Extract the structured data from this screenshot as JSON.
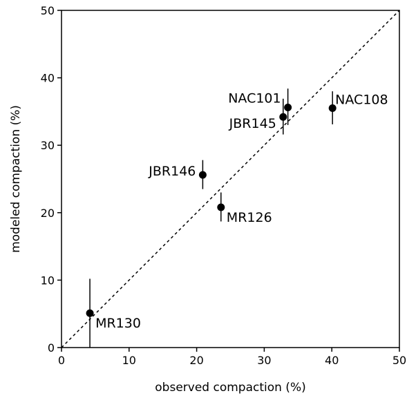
{
  "chart_data": {
    "type": "scatter",
    "title": "",
    "xlabel": "observed compaction (%)",
    "ylabel": "modeled compaction (%)",
    "xlim": [
      0,
      50
    ],
    "ylim": [
      0,
      50
    ],
    "xticks": [
      0,
      10,
      20,
      30,
      40,
      50
    ],
    "yticks": [
      0,
      10,
      20,
      30,
      40,
      50
    ],
    "grid": false,
    "reference_line": {
      "style": "dashed",
      "from": [
        0,
        0
      ],
      "to": [
        50,
        50
      ]
    },
    "points": [
      {
        "label": "NAC101",
        "x": 33.5,
        "y": 35.6,
        "y_low": 33.0,
        "y_high": 38.4,
        "label_side": "left-up"
      },
      {
        "label": "JBR145",
        "x": 32.8,
        "y": 34.2,
        "y_low": 31.6,
        "y_high": 36.9,
        "label_side": "left-down"
      },
      {
        "label": "NAC108",
        "x": 40.1,
        "y": 35.5,
        "y_low": 33.1,
        "y_high": 38.0,
        "label_side": "right"
      },
      {
        "label": "JBR146",
        "x": 20.9,
        "y": 25.6,
        "y_low": 23.5,
        "y_high": 27.8,
        "label_side": "left"
      },
      {
        "label": "MR126",
        "x": 23.6,
        "y": 20.8,
        "y_low": 18.7,
        "y_high": 23.0,
        "label_side": "right-down"
      },
      {
        "label": "MR130",
        "x": 4.2,
        "y": 5.1,
        "y_low": 0.0,
        "y_high": 10.2,
        "label_side": "right-down"
      }
    ]
  }
}
